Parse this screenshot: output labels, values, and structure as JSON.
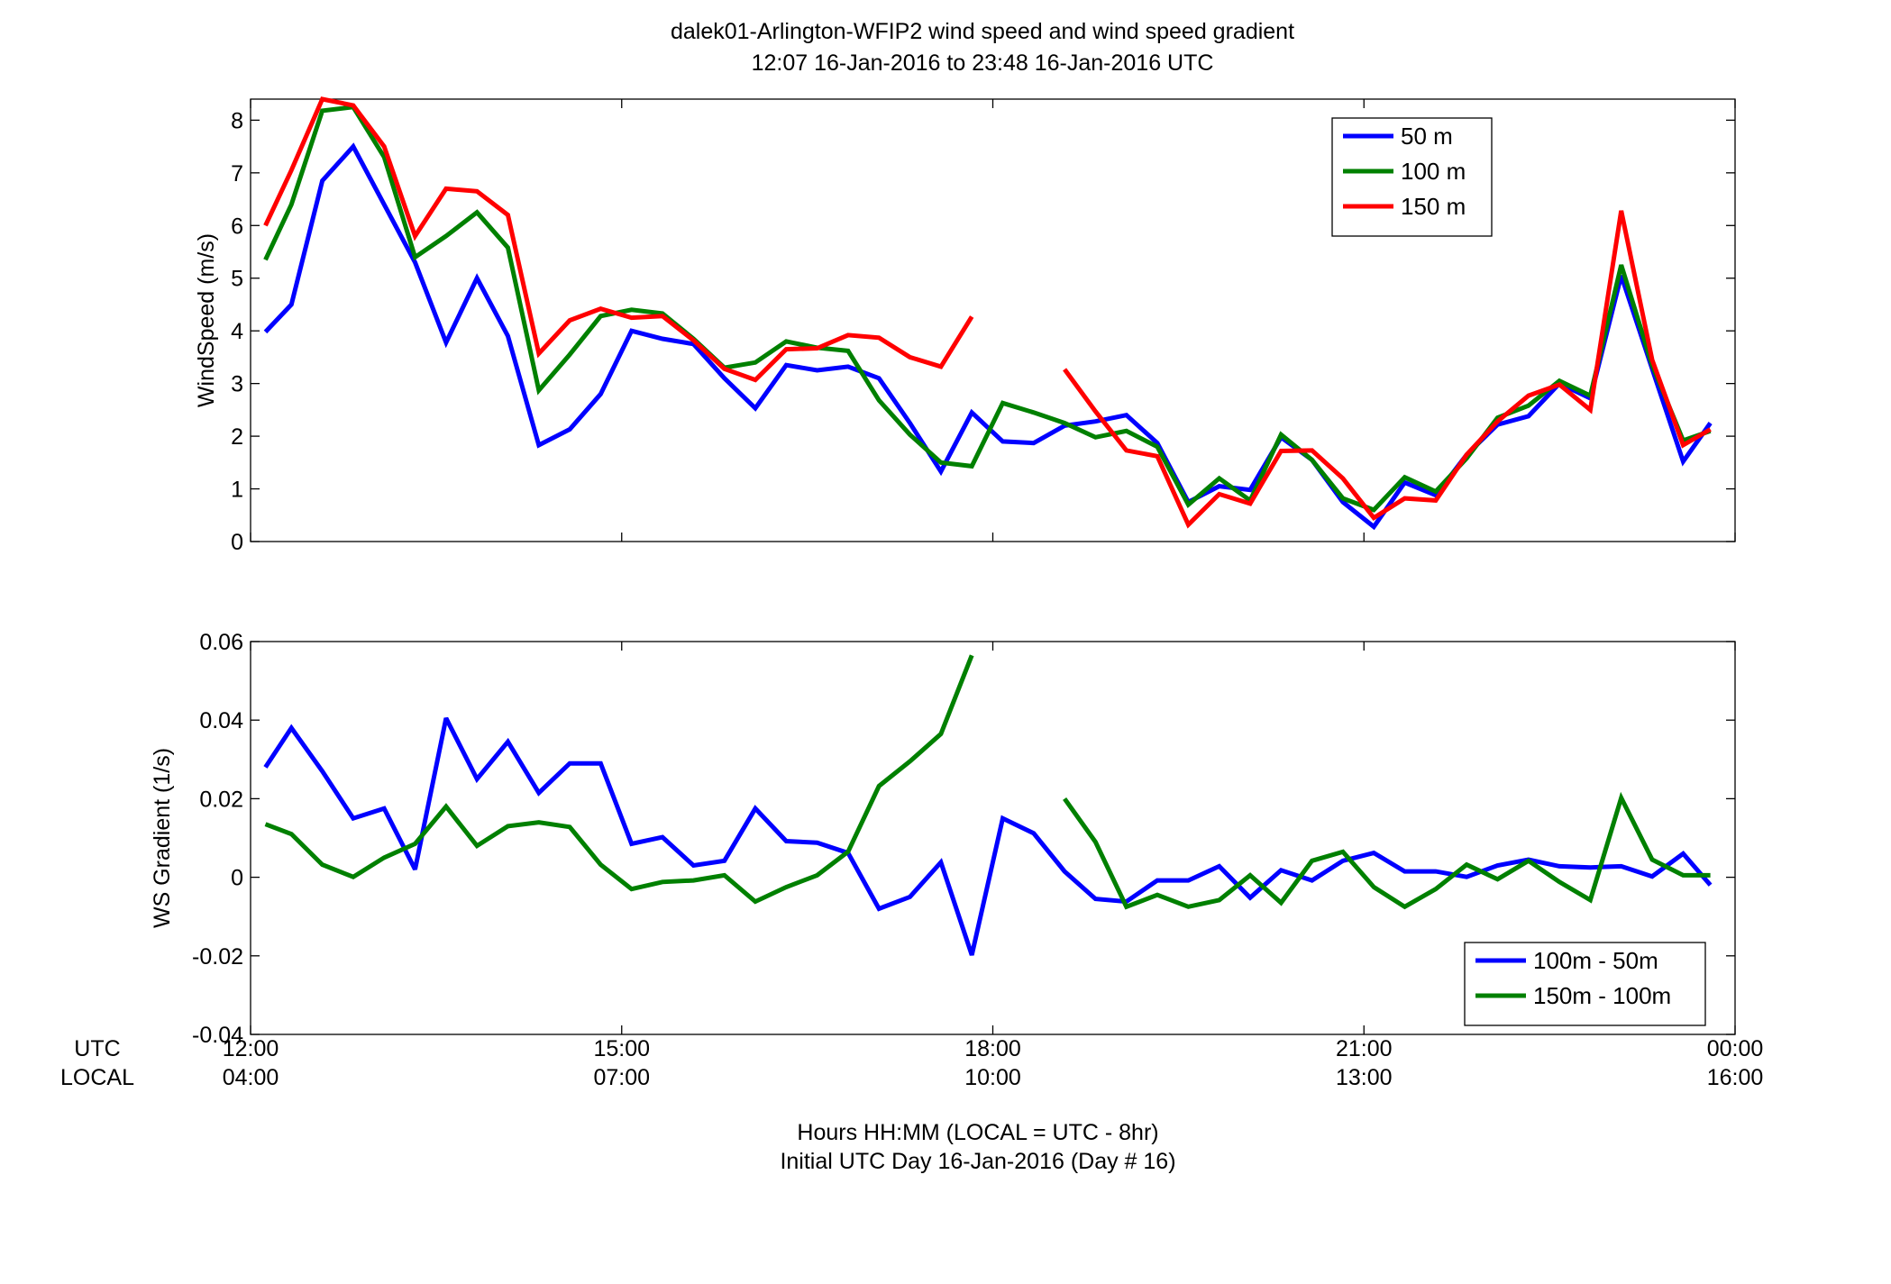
{
  "title": {
    "line1": "dalek01-Arlington-WFIP2  wind speed and wind speed gradient",
    "line2": "12:07 16-Jan-2016 to 23:48 16-Jan-2016  UTC"
  },
  "x_axis": {
    "row_labels": [
      "UTC",
      "LOCAL"
    ],
    "utc_ticks": [
      "12:00",
      "15:00",
      "18:00",
      "21:00",
      "00:00"
    ],
    "local_ticks": [
      "04:00",
      "07:00",
      "10:00",
      "13:00",
      "16:00"
    ],
    "tick_hours": [
      12,
      15,
      18,
      21,
      24
    ],
    "xlabel1": "Hours HH:MM  (LOCAL = UTC - 8hr)",
    "xlabel2": "Initial UTC Day 16-Jan-2016 (Day # 16)"
  },
  "colors": {
    "blue": "#0000ff",
    "green": "#008000",
    "red": "#ff0000"
  },
  "chart_data": [
    {
      "type": "line",
      "ylabel": "WindSpeed (m/s)",
      "xlim": [
        12,
        24
      ],
      "ylim": [
        0,
        8.4
      ],
      "yticks": [
        0,
        1,
        2,
        3,
        4,
        5,
        6,
        7,
        8
      ],
      "legend_position": "top-right",
      "x": [
        12.12,
        12.33,
        12.58,
        12.83,
        13.08,
        13.33,
        13.58,
        13.83,
        14.08,
        14.33,
        14.58,
        14.83,
        15.08,
        15.33,
        15.58,
        15.83,
        16.08,
        16.33,
        16.58,
        16.83,
        17.08,
        17.33,
        17.58,
        17.83,
        18.08,
        18.33,
        18.58,
        18.83,
        19.08,
        19.33,
        19.58,
        19.83,
        20.08,
        20.33,
        20.58,
        20.83,
        21.08,
        21.33,
        21.58,
        21.83,
        22.08,
        22.33,
        22.58,
        22.83,
        23.08,
        23.33,
        23.58,
        23.8
      ],
      "series": [
        {
          "name": "50 m",
          "color": "#0000ff",
          "values": [
            3.98,
            4.5,
            6.85,
            7.5,
            6.4,
            5.3,
            3.78,
            5.0,
            3.9,
            1.83,
            2.13,
            2.8,
            4.0,
            3.85,
            3.75,
            3.1,
            2.53,
            3.35,
            3.25,
            3.32,
            3.1,
            2.25,
            1.33,
            2.45,
            1.9,
            1.87,
            2.2,
            2.28,
            2.4,
            1.87,
            0.75,
            1.05,
            0.98,
            1.98,
            1.55,
            0.75,
            0.28,
            1.12,
            0.88,
            1.65,
            2.22,
            2.38,
            3.0,
            2.72,
            5.05,
            3.28,
            1.52,
            2.25
          ]
        },
        {
          "name": "100 m",
          "color": "#008000",
          "values": [
            5.35,
            6.4,
            8.18,
            8.25,
            7.3,
            5.4,
            5.8,
            6.25,
            5.58,
            2.87,
            3.55,
            4.28,
            4.4,
            4.33,
            3.85,
            3.3,
            3.4,
            3.8,
            3.68,
            3.62,
            2.68,
            2.03,
            1.5,
            1.43,
            2.63,
            2.45,
            2.25,
            1.98,
            2.1,
            1.8,
            0.7,
            1.2,
            0.78,
            2.03,
            1.55,
            0.82,
            0.6,
            1.22,
            0.95,
            1.58,
            2.35,
            2.58,
            3.05,
            2.77,
            5.25,
            3.35,
            1.92,
            2.1
          ]
        },
        {
          "name": "150 m",
          "color": "#ff0000",
          "values": [
            6.0,
            7.05,
            8.4,
            8.28,
            7.5,
            5.8,
            6.7,
            6.65,
            6.2,
            3.57,
            4.2,
            4.42,
            4.25,
            4.28,
            3.82,
            3.28,
            3.07,
            3.65,
            3.67,
            3.92,
            3.87,
            3.5,
            3.32,
            4.27,
            null,
            null,
            3.27,
            2.47,
            1.73,
            1.62,
            0.32,
            0.9,
            0.72,
            1.72,
            1.73,
            1.2,
            0.45,
            0.82,
            0.78,
            1.65,
            2.28,
            2.77,
            2.98,
            2.5,
            6.28,
            3.45,
            1.83,
            2.13
          ]
        }
      ]
    },
    {
      "type": "line",
      "ylabel": "WS Gradient (1/s)",
      "xlim": [
        12,
        24
      ],
      "ylim": [
        -0.04,
        0.06
      ],
      "yticks": [
        -0.04,
        -0.02,
        0,
        0.02,
        0.04,
        0.06
      ],
      "ytick_labels": [
        "-0.04",
        "-0.02",
        "0",
        "0.02",
        "0.04",
        "0.06"
      ],
      "legend_position": "bottom-right",
      "x": [
        12.12,
        12.33,
        12.58,
        12.83,
        13.08,
        13.33,
        13.58,
        13.83,
        14.08,
        14.33,
        14.58,
        14.83,
        15.08,
        15.33,
        15.58,
        15.83,
        16.08,
        16.33,
        16.58,
        16.83,
        17.08,
        17.33,
        17.58,
        17.83,
        18.08,
        18.33,
        18.58,
        18.83,
        19.08,
        19.33,
        19.58,
        19.83,
        20.08,
        20.33,
        20.58,
        20.83,
        21.08,
        21.33,
        21.58,
        21.83,
        22.08,
        22.33,
        22.58,
        22.83,
        23.08,
        23.33,
        23.58,
        23.8
      ],
      "series": [
        {
          "name": "100m - 50m",
          "color": "#0000ff",
          "values": [
            0.028,
            0.038,
            0.027,
            0.015,
            0.0175,
            0.002,
            0.0405,
            0.025,
            0.0345,
            0.0215,
            0.029,
            0.029,
            0.0085,
            0.0102,
            0.003,
            0.0042,
            0.0175,
            0.0092,
            0.0088,
            0.0062,
            -0.008,
            -0.005,
            0.0038,
            -0.0198,
            0.015,
            0.0112,
            0.0015,
            -0.0055,
            -0.0062,
            -0.0008,
            -0.0008,
            0.0028,
            -0.0052,
            0.0018,
            -0.0008,
            0.0042,
            0.0062,
            0.0015,
            0.0015,
            0.0001,
            0.003,
            0.0045,
            0.0028,
            0.0025,
            0.0028,
            0.0002,
            0.006,
            -0.002
          ]
        },
        {
          "name": "150m - 100m",
          "color": "#008000",
          "values": [
            0.0135,
            0.011,
            0.0032,
            0.0001,
            0.005,
            0.0085,
            0.018,
            0.008,
            0.013,
            0.014,
            0.0128,
            0.0032,
            -0.003,
            -0.0012,
            -0.0008,
            0.0005,
            -0.0062,
            -0.0025,
            0.0005,
            0.0065,
            0.0232,
            0.0295,
            0.0365,
            0.0565,
            null,
            null,
            0.02,
            0.009,
            -0.0075,
            -0.0045,
            -0.0075,
            -0.0058,
            0.0005,
            -0.0065,
            0.0042,
            0.0065,
            -0.0025,
            -0.0075,
            -0.003,
            0.0032,
            -0.0005,
            0.0042,
            -0.0012,
            -0.0058,
            0.0202,
            0.0045,
            0.0005,
            0.0005
          ]
        }
      ]
    }
  ]
}
